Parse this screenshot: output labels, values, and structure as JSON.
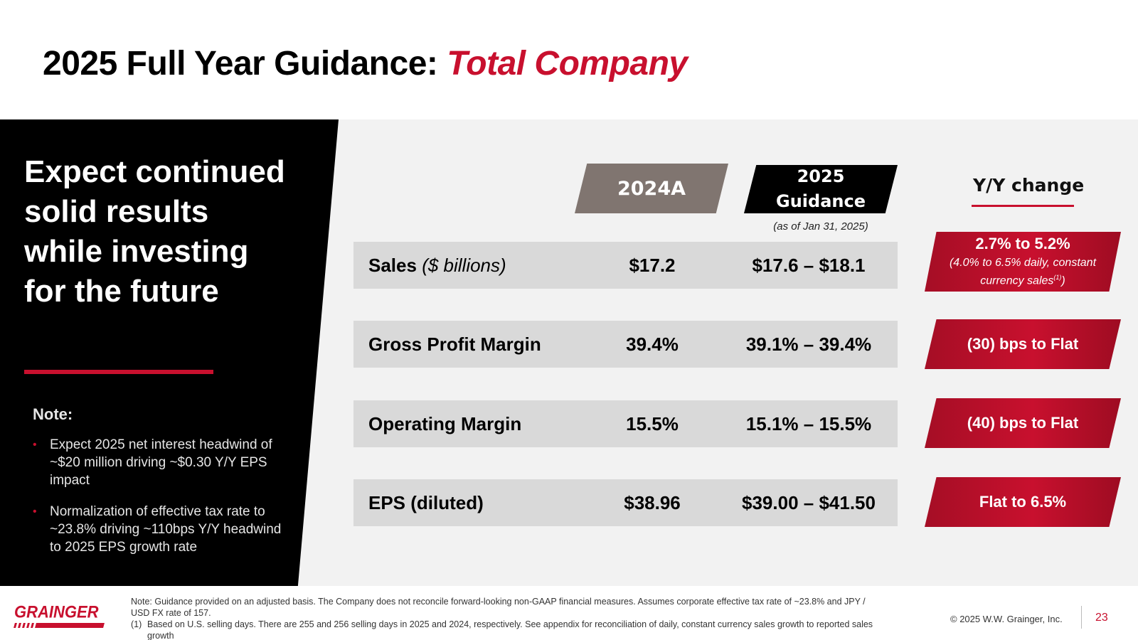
{
  "title": {
    "main": "2025 Full Year Guidance:",
    "accent": "Total Company"
  },
  "left": {
    "headline": "Expect continued solid results while investing for the future",
    "note_label": "Note:",
    "bullets": [
      "Expect 2025 net interest headwind of ~$20 million driving ~$0.30 Y/Y EPS impact",
      "Normalization of effective tax rate to ~23.8% driving ~110bps Y/Y headwind to 2025 EPS growth rate"
    ]
  },
  "columns": {
    "actual": "2024A",
    "guidance_line1": "2025",
    "guidance_line2": "Guidance",
    "as_of": "(as of Jan 31, 2025)",
    "change": "Y/Y change"
  },
  "rows": [
    {
      "label": "Sales",
      "label_sub": "($ billions)",
      "actual": "$17.2",
      "guidance": "$17.6 – $18.1",
      "change": "2.7% to 5.2%",
      "change_note": "(4.0% to 6.5% daily, constant currency sales",
      "change_note_sup": "(1)",
      "change_note_end": ")"
    },
    {
      "label": "Gross Profit Margin",
      "label_sub": "",
      "actual": "39.4%",
      "guidance": "39.1% – 39.4%",
      "change": "(30) bps to Flat"
    },
    {
      "label": "Operating Margin",
      "label_sub": "",
      "actual": "15.5%",
      "guidance": "15.1% – 15.5%",
      "change": "(40) bps to Flat"
    },
    {
      "label": "EPS (diluted)",
      "label_sub": "",
      "actual": "$38.96",
      "guidance": "$39.00 – $41.50",
      "change": "Flat to 6.5%"
    }
  ],
  "footer": {
    "note": "Note: Guidance provided on an adjusted basis. The Company does not reconcile forward-looking non-GAAP financial measures. Assumes corporate effective tax rate of ~23.8% and JPY / USD FX rate of 157.",
    "footnote_num": "(1)",
    "footnote": "Based on U.S. selling days. There are 255 and 256 selling days in 2025 and 2024, respectively. See appendix for reconciliation of daily, constant currency sales growth to reported sales growth",
    "logo": "GRAINGER",
    "copyright": "© 2025 W.W. Grainger, Inc.",
    "page": "23"
  },
  "colors": {
    "accent": "#c8102e",
    "actual_header": "#807570",
    "row_bg": "#d9d9d9",
    "panel": "#000000"
  }
}
